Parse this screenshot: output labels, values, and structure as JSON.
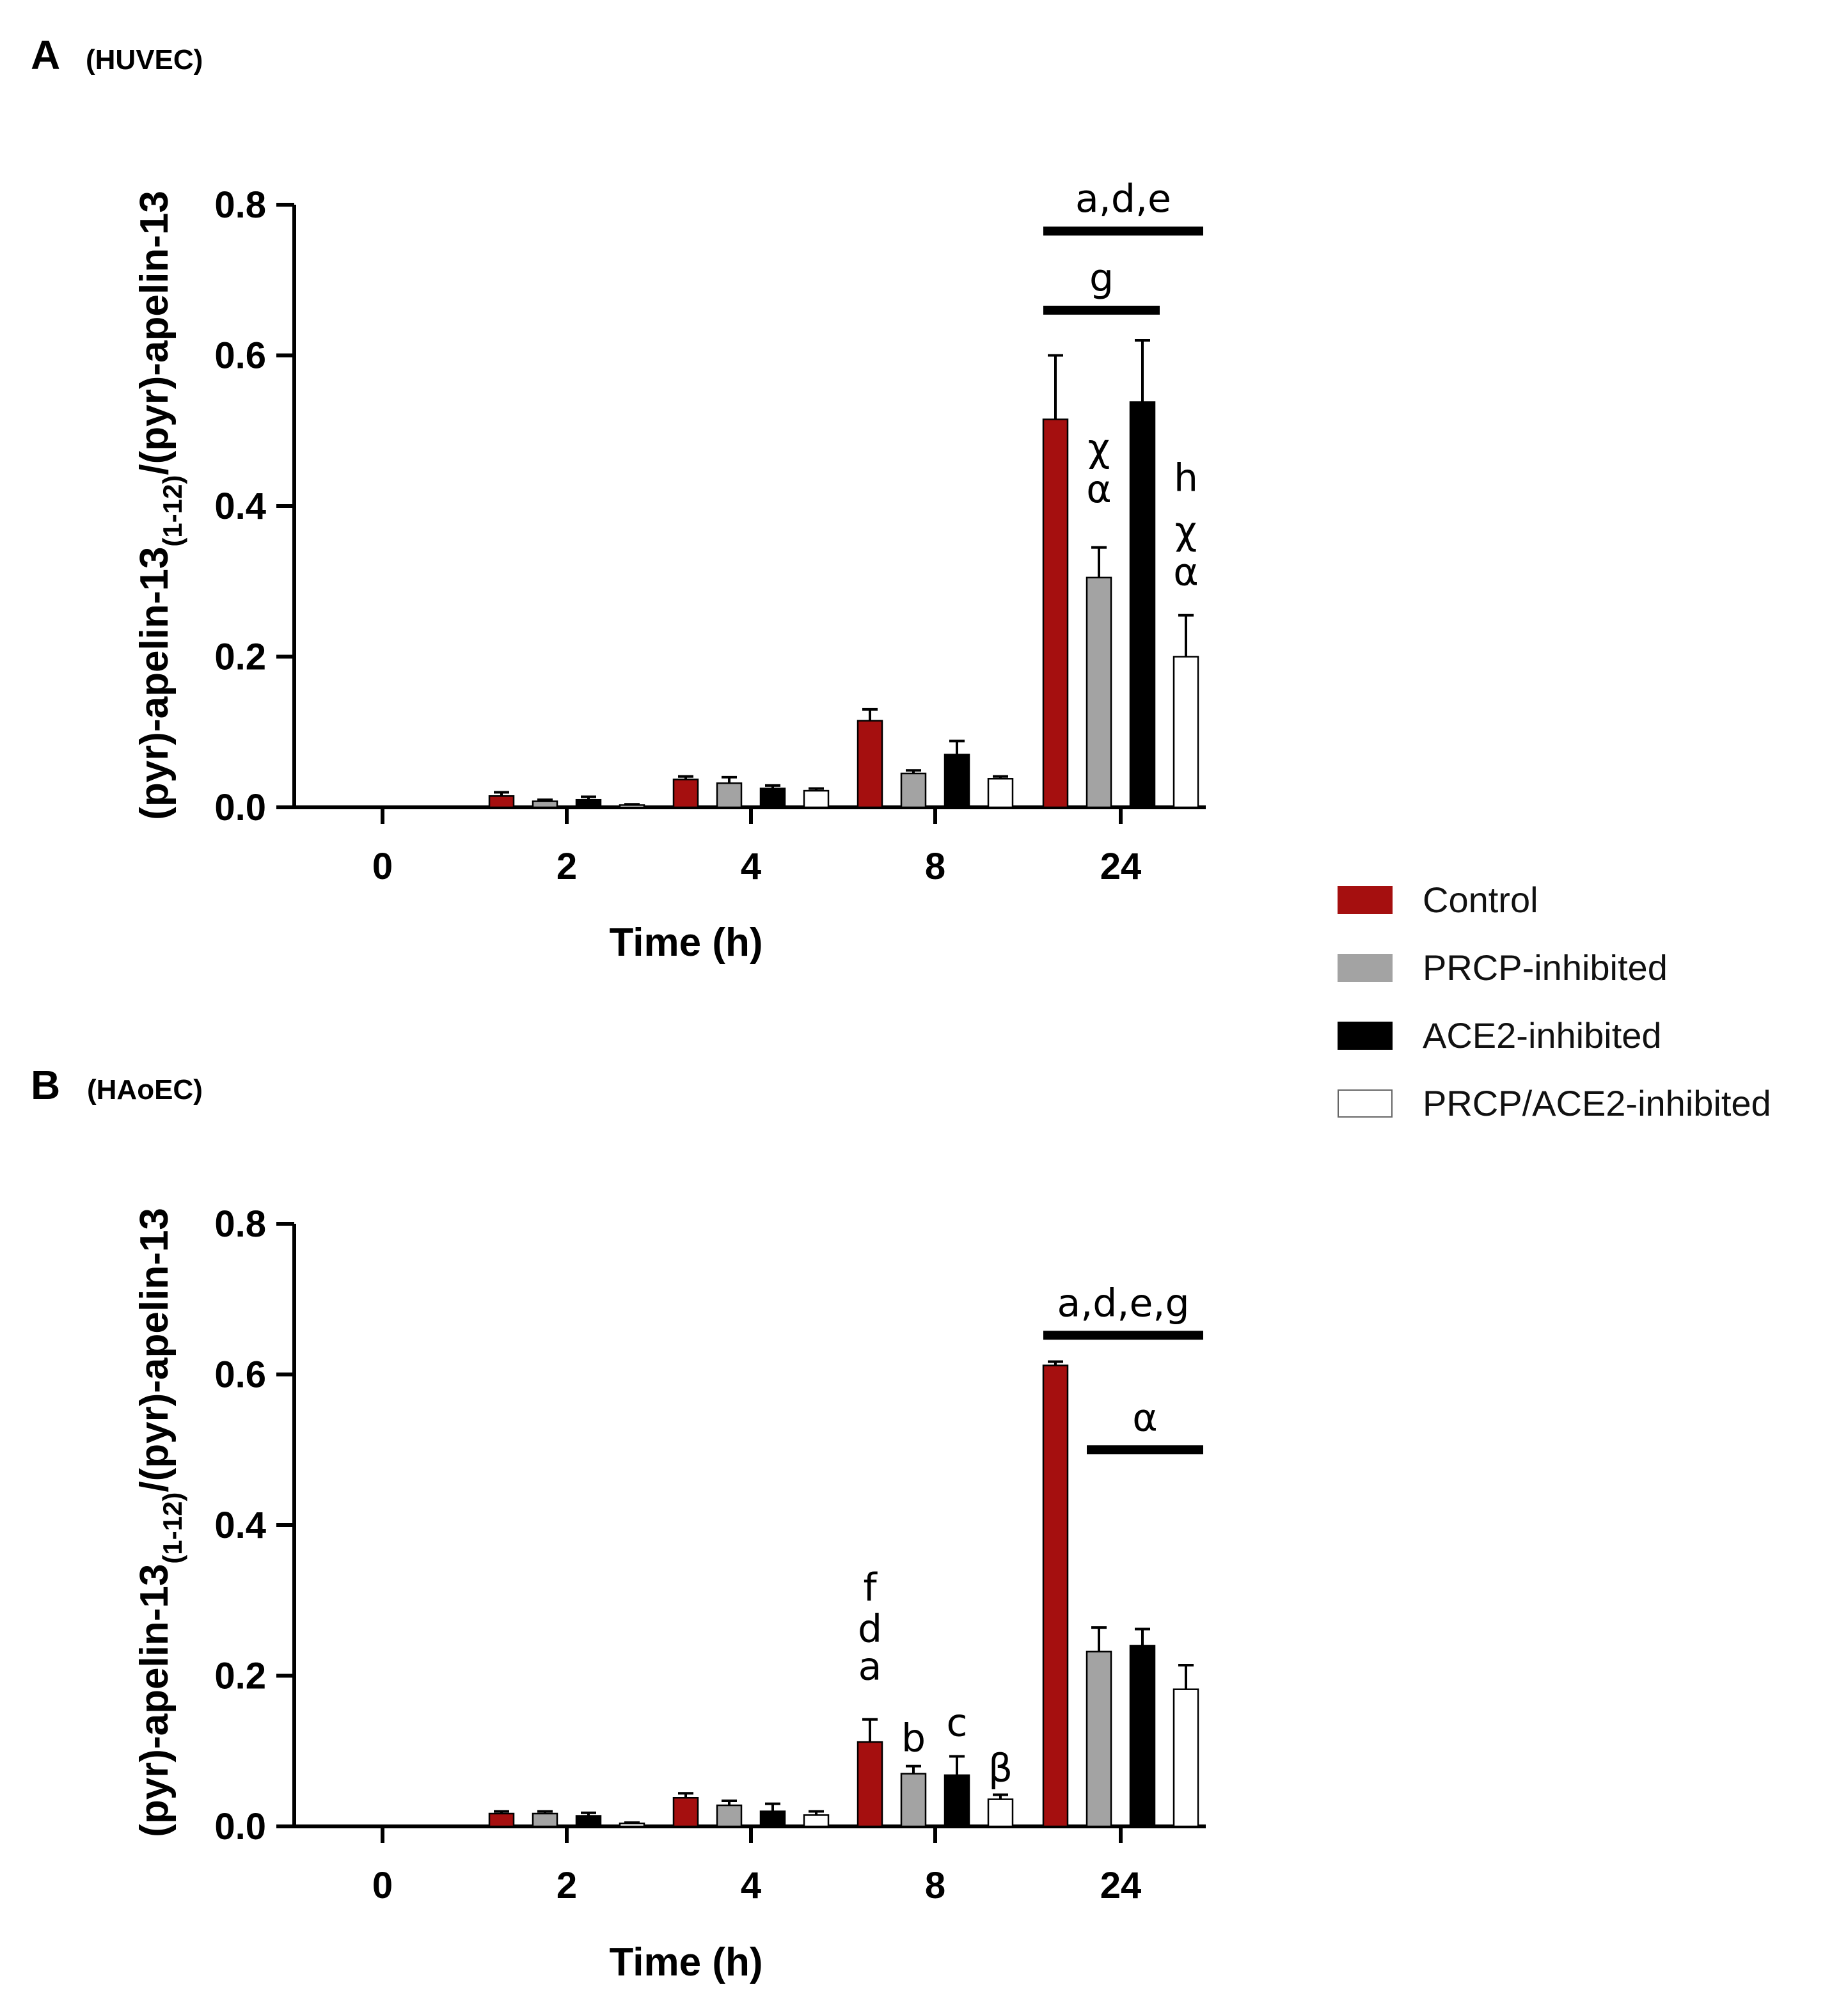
{
  "colors": {
    "control": "#a50f0f",
    "prcp": "#a3a3a3",
    "ace2": "#000000",
    "both": "#ffffff",
    "axis": "#000000"
  },
  "legend": [
    {
      "name": "Control",
      "color_key": "control"
    },
    {
      "name": "PRCP-inhibited",
      "color_key": "prcp"
    },
    {
      "name": "ACE2-inhibited",
      "color_key": "ace2"
    },
    {
      "name": "PRCP/ACE2-inhibited",
      "color_key": "both"
    }
  ],
  "chart_data": [
    {
      "type": "bar",
      "panel_letter": "A",
      "panel_cell": "(HUVEC)",
      "ylabel_main": "(pyr)-apelin-13",
      "ylabel_sub": "(1-12)",
      "ylabel_rest": "/(pyr)-apelin-13",
      "xlabel": "Time (h)",
      "ylim": [
        0,
        0.8
      ],
      "yticks": [
        "0.0",
        "0.2",
        "0.4",
        "0.6",
        "0.8"
      ],
      "categories": [
        "0",
        "2",
        "4",
        "8",
        "24"
      ],
      "series": [
        {
          "name": "Control",
          "color_key": "control",
          "values": [
            0,
            0.015,
            0.037,
            0.115,
            0.515
          ],
          "errors": [
            0,
            0.005,
            0.004,
            0.015,
            0.085
          ]
        },
        {
          "name": "PRCP-inhibited",
          "color_key": "prcp",
          "values": [
            0,
            0.008,
            0.032,
            0.045,
            0.305
          ],
          "errors": [
            0,
            0.002,
            0.008,
            0.004,
            0.04
          ]
        },
        {
          "name": "ACE2-inhibited",
          "color_key": "ace2",
          "values": [
            0,
            0.01,
            0.025,
            0.07,
            0.538
          ],
          "errors": [
            0,
            0.004,
            0.004,
            0.018,
            0.082
          ]
        },
        {
          "name": "PRCP/ACE2-inhibited",
          "color_key": "both",
          "values": [
            0,
            0.003,
            0.022,
            0.038,
            0.2
          ],
          "errors": [
            0,
            0.001,
            0.003,
            0.003,
            0.055
          ]
        }
      ],
      "sig_bars": [
        {
          "label": "a,d,e",
          "category": "24",
          "from_series": 0,
          "to_series": 3,
          "y": 0.765
        },
        {
          "label": "g",
          "category": "24",
          "from_series": 0,
          "to_series": 2,
          "y": 0.66
        }
      ],
      "sig_labels": [
        {
          "label": "χ",
          "category": "24",
          "series": 1,
          "y": 0.46
        },
        {
          "label": "α",
          "category": "24",
          "series": 1,
          "y": 0.405
        },
        {
          "label": "h",
          "category": "24",
          "series": 3,
          "y": 0.42
        },
        {
          "label": "χ",
          "category": "24",
          "series": 3,
          "y": 0.35
        },
        {
          "label": "α",
          "category": "24",
          "series": 3,
          "y": 0.295
        }
      ]
    },
    {
      "type": "bar",
      "panel_letter": "B",
      "panel_cell": "(HAoEC)",
      "ylabel_main": "(pyr)-apelin-13",
      "ylabel_sub": "(1-12)",
      "ylabel_rest": "/(pyr)-apelin-13",
      "xlabel": "Time (h)",
      "ylim": [
        0,
        0.8
      ],
      "yticks": [
        "0.0",
        "0.2",
        "0.4",
        "0.6",
        "0.8"
      ],
      "categories": [
        "0",
        "2",
        "4",
        "8",
        "24"
      ],
      "series": [
        {
          "name": "Control",
          "color_key": "control",
          "values": [
            0,
            0.017,
            0.038,
            0.112,
            0.612
          ],
          "errors": [
            0,
            0.003,
            0.006,
            0.03,
            0.005
          ]
        },
        {
          "name": "PRCP-inhibited",
          "color_key": "prcp",
          "values": [
            0,
            0.017,
            0.028,
            0.07,
            0.232
          ],
          "errors": [
            0,
            0.003,
            0.006,
            0.01,
            0.032
          ]
        },
        {
          "name": "ACE2-inhibited",
          "color_key": "ace2",
          "values": [
            0,
            0.014,
            0.02,
            0.068,
            0.24
          ],
          "errors": [
            0,
            0.004,
            0.01,
            0.025,
            0.022
          ]
        },
        {
          "name": "PRCP/ACE2-inhibited",
          "color_key": "both",
          "values": [
            0,
            0.004,
            0.015,
            0.036,
            0.182
          ],
          "errors": [
            0,
            0.001,
            0.005,
            0.006,
            0.032
          ]
        }
      ],
      "sig_bars": [
        {
          "label": "a,d,e,g",
          "category": "24",
          "from_series": 0,
          "to_series": 3,
          "y": 0.652
        },
        {
          "label": "α",
          "category": "24",
          "from_series": 1,
          "to_series": 3,
          "y": 0.5
        }
      ],
      "sig_labels": [
        {
          "label": "f",
          "category": "8",
          "series": 0,
          "y": 0.3
        },
        {
          "label": "d",
          "category": "8",
          "series": 0,
          "y": 0.245
        },
        {
          "label": "a",
          "category": "8",
          "series": 0,
          "y": 0.195
        },
        {
          "label": "b",
          "category": "8",
          "series": 1,
          "y": 0.1
        },
        {
          "label": "c",
          "category": "8",
          "series": 2,
          "y": 0.12
        },
        {
          "label": "β",
          "category": "8",
          "series": 3,
          "y": 0.06
        }
      ]
    }
  ]
}
